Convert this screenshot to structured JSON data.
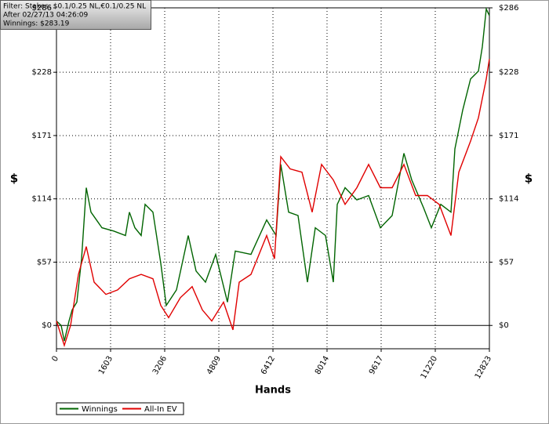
{
  "chart_data": {
    "type": "line",
    "annotations": [
      "Filter: Stakes: $0.1/0.25 NL,€0.1/0.25 NL",
      "After 02/27/13 04:26:09",
      "Winnings: $283.19"
    ],
    "xlabel": "Hands",
    "ylabel": "$",
    "y2label": "$",
    "xlim": [
      0,
      12823
    ],
    "xticks": [
      0,
      1603,
      3206,
      4809,
      6412,
      8014,
      9617,
      11220,
      12823
    ],
    "ylim": [
      -21,
      286
    ],
    "yticks": [
      {
        "value": 0,
        "label": "$0"
      },
      {
        "value": 57,
        "label": "$57"
      },
      {
        "value": 114,
        "label": "$114"
      },
      {
        "value": 171,
        "label": "$171"
      },
      {
        "value": 228,
        "label": "$228"
      },
      {
        "value": 286,
        "label": "$286"
      }
    ],
    "y2lim": [
      -21,
      286
    ],
    "y2ticks": [
      {
        "value": 0,
        "label": "$0"
      },
      {
        "value": 57,
        "label": "$57"
      },
      {
        "value": 114,
        "label": "$114"
      },
      {
        "value": 171,
        "label": "$171"
      },
      {
        "value": 228,
        "label": "$228"
      },
      {
        "value": 286,
        "label": "$286"
      }
    ],
    "grid": true,
    "legend": "bottom-left",
    "series": [
      {
        "name": "Winnings",
        "color": "#006400",
        "x": [
          0,
          139,
          232,
          372,
          465,
          604,
          743,
          883,
          1022,
          1347,
          1696,
          2044,
          2160,
          2323,
          2509,
          2625,
          2857,
          3090,
          3252,
          3554,
          3903,
          4135,
          4414,
          4716,
          5064,
          5296,
          5761,
          6226,
          6504,
          6644,
          6877,
          7156,
          7434,
          7667,
          7968,
          8200,
          8316,
          8549,
          8897,
          9246,
          9594,
          9943,
          10291,
          10524,
          10872,
          11104,
          11383,
          11685,
          11801,
          12033,
          12265,
          12498,
          12614,
          12730,
          12823
        ],
        "values": [
          4,
          0,
          -14,
          4,
          14,
          21,
          60,
          124,
          102,
          88,
          85,
          81,
          102,
          88,
          81,
          109,
          102,
          56,
          18,
          32,
          81,
          49,
          39,
          64,
          21,
          67,
          64,
          95,
          81,
          145,
          102,
          99,
          39,
          88,
          81,
          39,
          109,
          124,
          113,
          117,
          88,
          99,
          155,
          131,
          106,
          88,
          109,
          102,
          159,
          194,
          222,
          229,
          251,
          285,
          279
        ]
      },
      {
        "name": "All-In EV",
        "color": "#e00000",
        "x": [
          0,
          232,
          418,
          650,
          883,
          1115,
          1463,
          1812,
          2160,
          2509,
          2857,
          3090,
          3322,
          3671,
          4019,
          4321,
          4600,
          4948,
          5227,
          5412,
          5761,
          6226,
          6458,
          6644,
          6923,
          7272,
          7574,
          7852,
          8200,
          8549,
          8897,
          9246,
          9594,
          9943,
          10291,
          10640,
          10988,
          11337,
          11685,
          11917,
          12265,
          12498,
          12730,
          12823
        ],
        "values": [
          4,
          -18,
          0,
          46,
          71,
          39,
          28,
          32,
          42,
          46,
          42,
          18,
          7,
          25,
          35,
          14,
          4,
          21,
          -4,
          39,
          46,
          81,
          60,
          152,
          141,
          138,
          102,
          145,
          131,
          109,
          124,
          145,
          124,
          124,
          145,
          117,
          117,
          109,
          81,
          138,
          166,
          187,
          222,
          240
        ]
      }
    ]
  }
}
